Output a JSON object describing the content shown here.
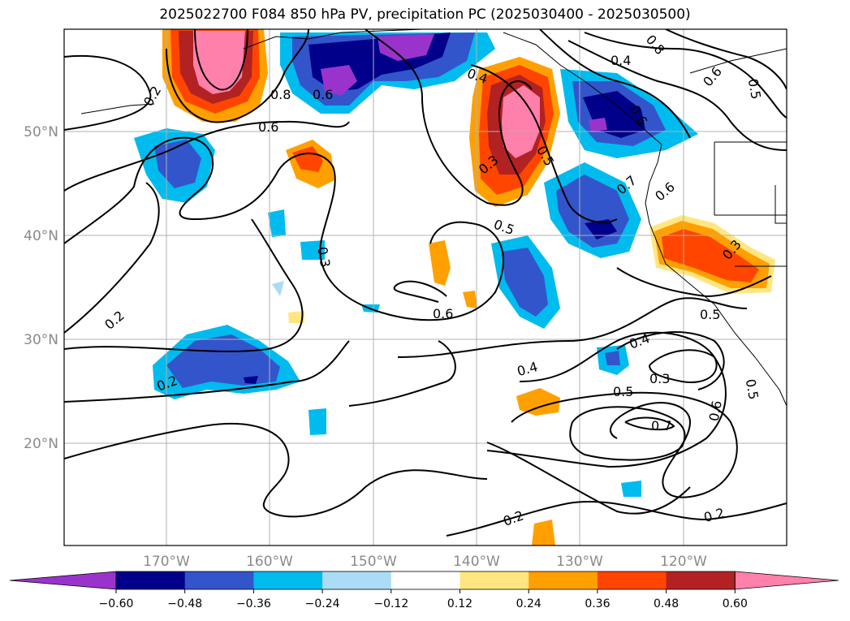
{
  "title": "2025022700 F084 850 hPa PV, precipitation PC (2025030400 - 2025030500)",
  "map": {
    "lat_labels": [
      "50°N",
      "40°N",
      "30°N",
      "20°N"
    ],
    "lon_labels": [
      "170°W",
      "160°W",
      "150°W",
      "140°W",
      "130°W",
      "120°W"
    ],
    "contour_labels": [
      "0.2",
      "0.8",
      "0.6",
      "0.4",
      "0.5",
      "0.8",
      "0.6",
      "0.4",
      "0.5",
      "0.6",
      "0.3",
      "0.5",
      "0.7",
      "0.3",
      "0.6",
      "0.5",
      "0.4",
      "0.3",
      "0.6",
      "0.5",
      "0.4",
      "0.3",
      "0.5",
      "0.6",
      "0.7",
      "0.2",
      "0.2",
      "0.2",
      "0.2",
      "0.6"
    ]
  },
  "colorbar": {
    "ticks": [
      "−0.60",
      "−0.48",
      "−0.36",
      "−0.24",
      "−0.12",
      "0.12",
      "0.24",
      "0.36",
      "0.48",
      "0.60"
    ],
    "colors": [
      "#9a33cc",
      "#00008b",
      "#3355cc",
      "#00bbee",
      "#aaddf5",
      "#ffffff",
      "#ffe680",
      "#ffa000",
      "#ff4500",
      "#b22222",
      "#ff80aa"
    ]
  }
}
